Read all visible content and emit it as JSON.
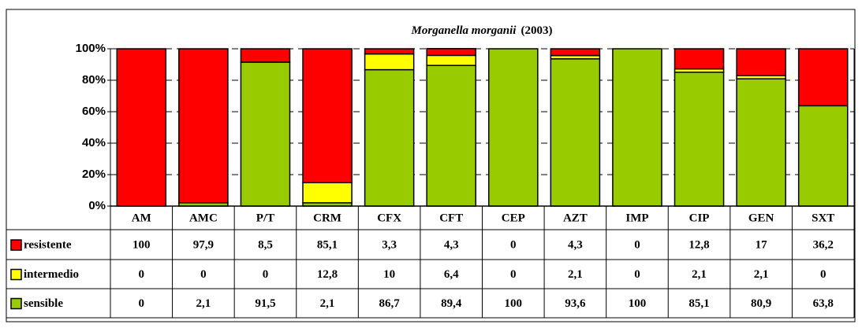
{
  "chart_data": {
    "type": "stacked_bar",
    "title_parts": [
      "Morganella morganii",
      "(2003)"
    ],
    "categories": [
      "AM",
      "AMC",
      "P/T",
      "CRM",
      "CFX",
      "CFT",
      "CEP",
      "AZT",
      "IMP",
      "CIP",
      "GEN",
      "SXT"
    ],
    "series": [
      {
        "name": "resistente",
        "color": "#ff0000",
        "values": [
          100,
          97.9,
          8.5,
          85.1,
          3.3,
          4.3,
          0,
          4.3,
          0,
          12.8,
          17,
          36.2
        ],
        "value_labels": [
          "100",
          "97,9",
          "8,5",
          "85,1",
          "3,3",
          "4,3",
          "0",
          "4,3",
          "0",
          "12,8",
          "17",
          "36,2"
        ]
      },
      {
        "name": "intermedio",
        "color": "#ffff00",
        "values": [
          0,
          0,
          0,
          12.8,
          10,
          6.4,
          0,
          2.1,
          0,
          2.1,
          2.1,
          0
        ],
        "value_labels": [
          "0",
          "0",
          "0",
          "12,8",
          "10",
          "6,4",
          "0",
          "2,1",
          "0",
          "2,1",
          "2,1",
          "0"
        ]
      },
      {
        "name": "sensible",
        "color": "#99cc00",
        "values": [
          0,
          2.1,
          91.5,
          2.1,
          86.7,
          89.4,
          100,
          93.6,
          100,
          85.1,
          80.9,
          63.8
        ],
        "value_labels": [
          "0",
          "2,1",
          "91,5",
          "2,1",
          "86,7",
          "89,4",
          "100",
          "93,6",
          "100",
          "85,1",
          "80,9",
          "63,8"
        ]
      }
    ],
    "ylim": [
      0,
      100
    ],
    "yticks": [
      {
        "value": 0,
        "label": "0%"
      },
      {
        "value": 20,
        "label": "20%"
      },
      {
        "value": 40,
        "label": "40%"
      },
      {
        "value": 60,
        "label": "60%"
      },
      {
        "value": 80,
        "label": "80%"
      },
      {
        "value": 100,
        "label": "100%"
      }
    ],
    "grid": true
  }
}
